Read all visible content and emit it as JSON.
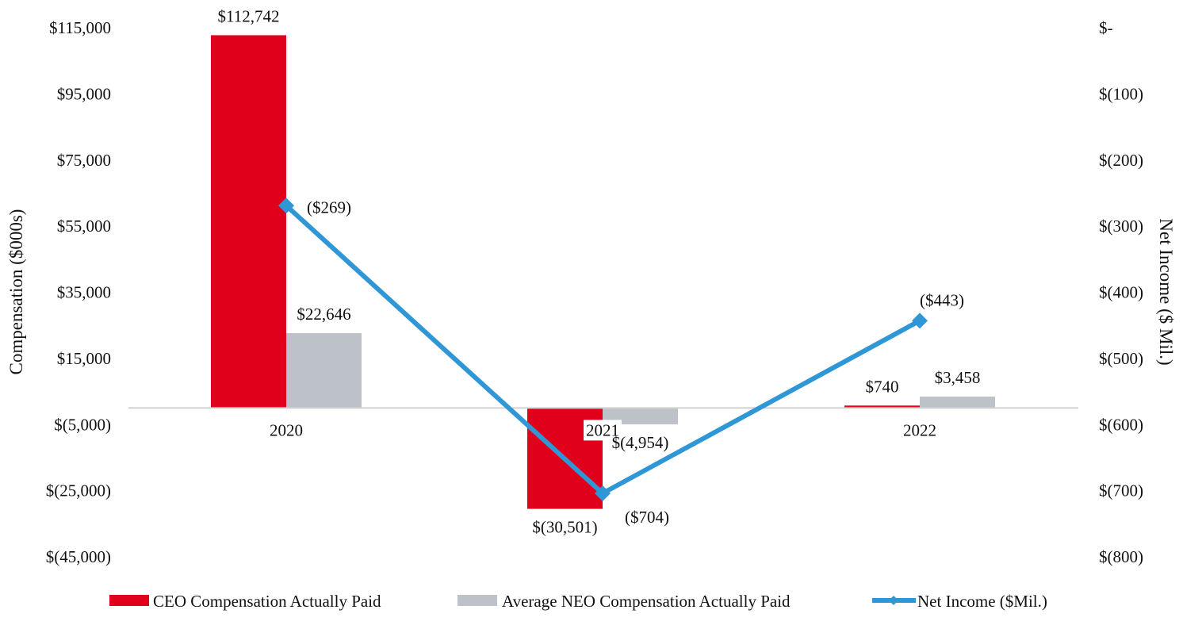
{
  "chart_data": {
    "type": "bar",
    "categories": [
      "2020",
      "2021",
      "2022"
    ],
    "series": [
      {
        "name": "CEO Compensation Actually Paid",
        "kind": "bar",
        "axis": "left",
        "values": [
          112742,
          -30501,
          740
        ],
        "labels": [
          "$112,742",
          "$(30,501)",
          "$740"
        ]
      },
      {
        "name": "Average NEO Compensation Actually Paid",
        "kind": "bar",
        "axis": "left",
        "values": [
          22646,
          -4954,
          3458
        ],
        "labels": [
          "$22,646",
          "$(4,954)",
          "$3,458"
        ]
      },
      {
        "name": "Net Income ($Mil.)",
        "kind": "line",
        "axis": "right",
        "values": [
          -269,
          -704,
          -443
        ],
        "labels": [
          "($269)",
          "($704)",
          "($443)"
        ]
      }
    ],
    "ylabel": "Compensation ($000s)",
    "y2label": "Net Income ($ Mil.)",
    "ylim": [
      -45000,
      115000
    ],
    "y2lim": [
      -800,
      0
    ],
    "yticks": [
      115000,
      95000,
      75000,
      55000,
      35000,
      15000,
      -5000,
      -25000,
      -45000
    ],
    "yticklabels": [
      "$115,000",
      "$95,000",
      "$75,000",
      "$55,000",
      "$35,000",
      "$15,000",
      "$(5,000)",
      "$(25,000)",
      "$(45,000)"
    ],
    "y2ticks": [
      0,
      -100,
      -200,
      -300,
      -400,
      -500,
      -600,
      -700,
      -800
    ],
    "y2ticklabels": [
      "$-",
      "$(100)",
      "$(200)",
      "$(300)",
      "$(400)",
      "$(500)",
      "$(600)",
      "$(700)",
      "$(800)"
    ],
    "legend_position": "bottom",
    "grid": false
  },
  "colors": {
    "ceo": "#e0001b",
    "neo": "#bcc2c7",
    "net_income": "#2f97d6",
    "axis": "#d0d0d0"
  }
}
